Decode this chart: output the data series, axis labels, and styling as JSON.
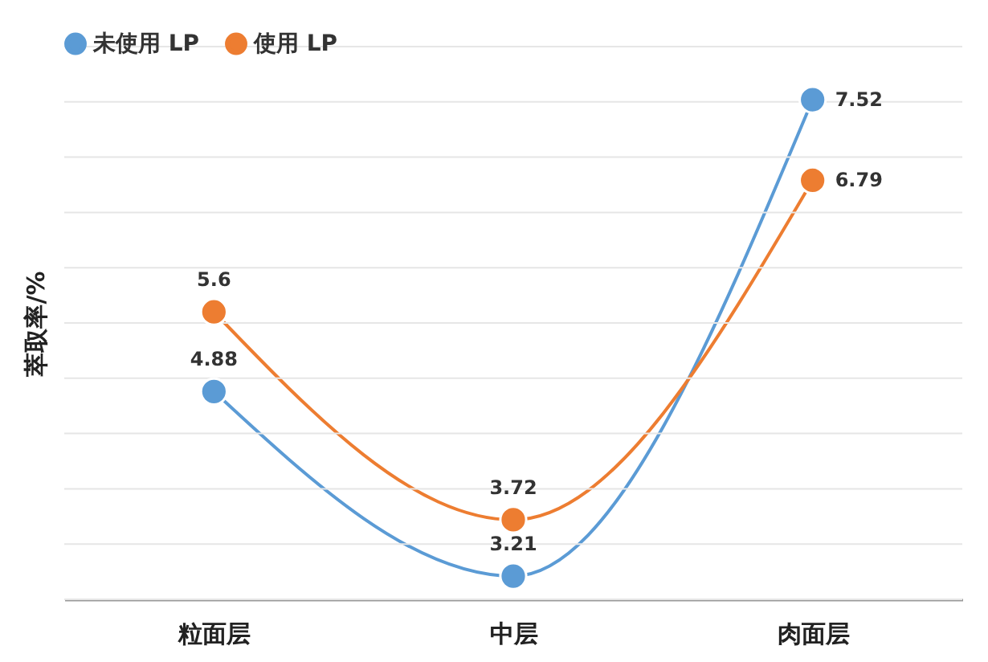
{
  "chart_data": {
    "type": "line",
    "ylabel": "萃取率/%",
    "categories": [
      "粒面层",
      "中层",
      "肉面层"
    ],
    "series": [
      {
        "name": "未使用 LP",
        "color": "#5b9bd5",
        "values": [
          4.88,
          3.21,
          7.52
        ]
      },
      {
        "name": "使用 LP",
        "color": "#ed7d31",
        "values": [
          5.6,
          3.72,
          6.79
        ]
      }
    ],
    "ylim": [
      3,
      8
    ],
    "yticks": [
      {
        "value": 3,
        "label": null
      },
      {
        "value": 3.5,
        "label": null
      },
      {
        "value": 4,
        "label": null
      },
      {
        "value": 4.5,
        "label": null
      },
      {
        "value": 5,
        "label": null
      },
      {
        "value": 5.5,
        "label": null
      },
      {
        "value": 6,
        "label": null
      },
      {
        "value": 6.5,
        "label": null
      },
      {
        "value": 7,
        "label": null
      },
      {
        "value": 7.5,
        "label": null
      },
      {
        "value": 8,
        "label": null
      }
    ],
    "tick_labels": "x",
    "grid": "y",
    "legend": "top",
    "marker": "circle",
    "line_style": "solid",
    "data_labels": true
  }
}
